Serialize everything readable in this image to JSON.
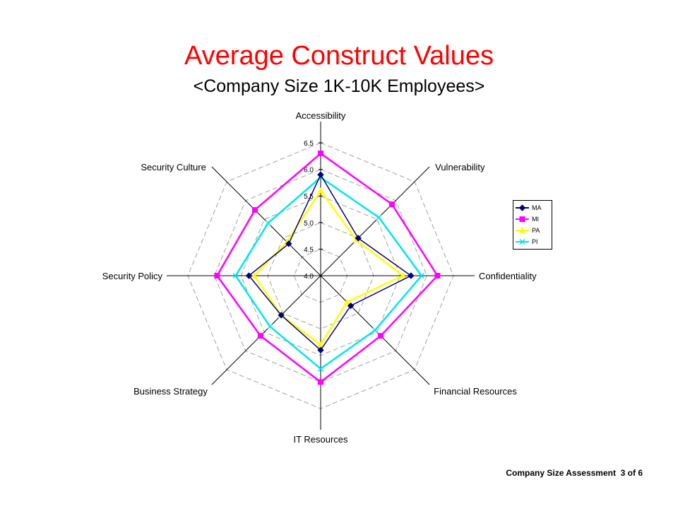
{
  "header": {
    "title": "Average Construct Values",
    "subtitle": "<Company Size 1K-10K Employees>"
  },
  "footer": {
    "label": "Company  Size Assessment",
    "page": "3  of  6"
  },
  "chart_data": {
    "type": "radar",
    "title": "Average Construct Values",
    "subtitle": "<Company Size 1K-10K Employees>",
    "categories": [
      "Accessibility",
      "Vulnerability",
      "Confidentiality",
      "Financial Resources",
      "IT Resources",
      "Business Strategy",
      "Security Policy",
      "Security Culture"
    ],
    "rlim": [
      4.0,
      6.5
    ],
    "ticks": [
      "4.0",
      "4.5",
      "5.0",
      "5.5",
      "6.0",
      "6.5"
    ],
    "tick_values": [
      4.0,
      4.5,
      5.0,
      5.5,
      6.0,
      6.5
    ],
    "grid": true,
    "legend_position": "right",
    "series": [
      {
        "name": "MA",
        "color": "#000080",
        "marker": "diamond",
        "values": [
          5.9,
          5.0,
          5.7,
          4.8,
          5.4,
          5.05,
          5.35,
          4.85
        ]
      },
      {
        "name": "MI",
        "color": "#ff00ff",
        "marker": "square",
        "values": [
          6.3,
          5.9,
          6.2,
          5.6,
          6.0,
          5.6,
          5.95,
          5.75
        ]
      },
      {
        "name": "PA",
        "color": "#ffff00",
        "marker": "triangle",
        "values": [
          5.6,
          4.95,
          5.55,
          4.7,
          5.3,
          5.05,
          5.25,
          4.9
        ]
      },
      {
        "name": "PI",
        "color": "#00e5ee",
        "marker": "x",
        "values": [
          5.85,
          5.55,
          5.9,
          5.45,
          5.75,
          5.35,
          5.6,
          5.4
        ]
      }
    ]
  }
}
